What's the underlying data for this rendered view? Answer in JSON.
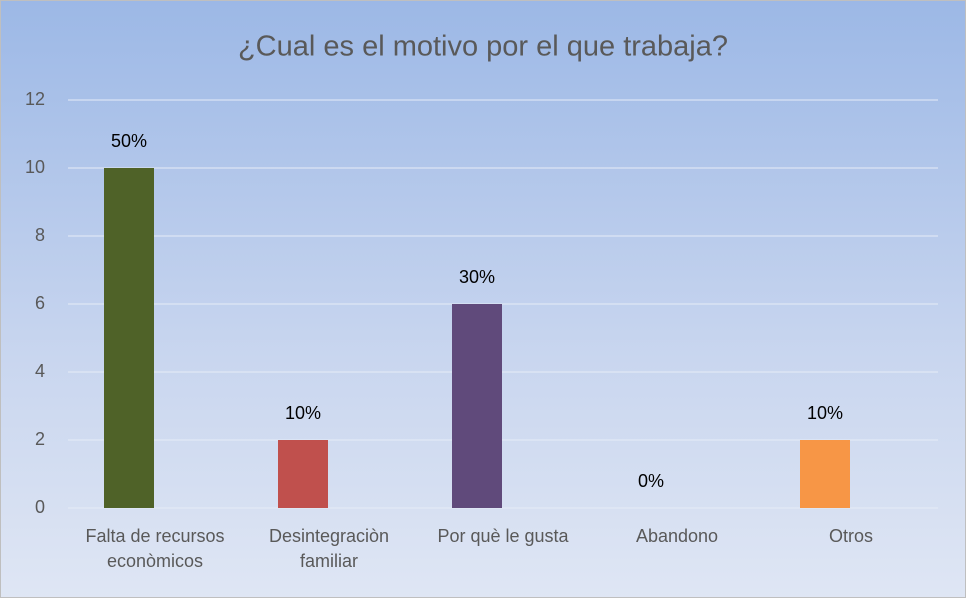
{
  "chart_data": {
    "type": "bar",
    "title": "¿Cual es el motivo por el que trabaja?",
    "categories": [
      "Falta de recursos econòmicos",
      "Desintegraciòn familiar",
      "Por què le gusta",
      "Abandono",
      "Otros"
    ],
    "values": [
      10,
      2,
      6,
      0,
      2
    ],
    "percent_labels": [
      "50%",
      "10%",
      "30%",
      "0%",
      "10%"
    ],
    "colors": [
      "#4f6228",
      "#c0504d",
      "#604a7b",
      "#4bacc6",
      "#f79646"
    ],
    "ylim": [
      0,
      12
    ],
    "yticks": [
      0,
      2,
      4,
      6,
      8,
      10,
      12
    ],
    "grid": true
  }
}
